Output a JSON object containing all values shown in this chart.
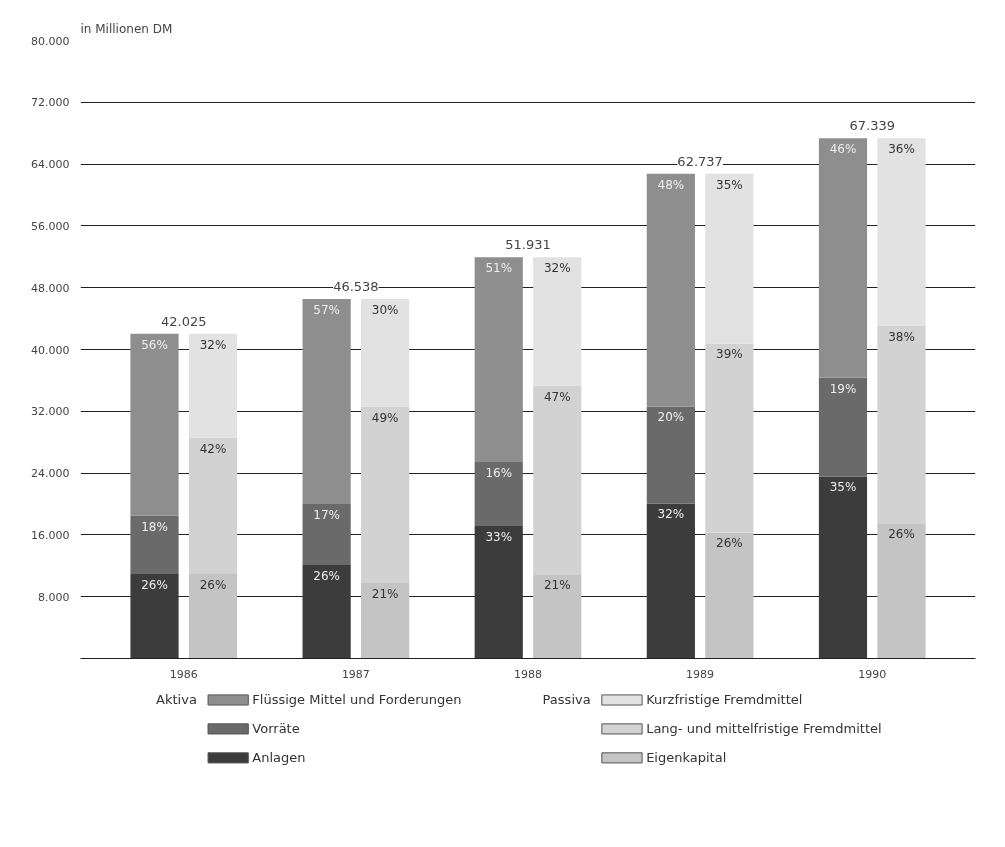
{
  "chart_data": [
    {
      "type": "bar",
      "stacked": true,
      "ylabel": "in Millionen DM",
      "legend_title": "Aktiva",
      "categories": [
        "1986",
        "1987",
        "1988",
        "1989",
        "1990"
      ],
      "ylim": [
        0,
        80000
      ],
      "yticks": [
        {
          "value": 8000,
          "label": "8.000"
        },
        {
          "value": 16000,
          "label": "16.000"
        },
        {
          "value": 24000,
          "label": "24.000"
        },
        {
          "value": 32000,
          "label": "32.000"
        },
        {
          "value": 40000,
          "label": "40.000"
        },
        {
          "value": 48000,
          "label": "48.000"
        },
        {
          "value": 56000,
          "label": "56.000"
        },
        {
          "value": 64000,
          "label": "64.000"
        },
        {
          "value": 72000,
          "label": "72.000"
        },
        {
          "value": 80000,
          "label": "80.000"
        }
      ],
      "grid": "y",
      "legend": "bottom",
      "totals": [
        "42.025",
        "46.538",
        "51.931",
        "62.737",
        "67.339"
      ],
      "series": [
        {
          "name": "Anlagen",
          "color": "#3c3c3c",
          "values": [
            10927,
            12100,
            17137,
            20076,
            23569
          ]
        },
        {
          "name": "Vorräte",
          "color": "#6a6a6a",
          "values": [
            7565,
            7911,
            8309,
            12547,
            12794
          ]
        },
        {
          "name": "Flüssige Mittel und Forderungen",
          "color": "#8e8e8e",
          "values": [
            23533,
            26527,
            26485,
            30114,
            30976
          ]
        }
      ],
      "annotations": [
        "26%",
        "26%",
        "33%",
        "32%",
        "35%",
        "18%",
        "17%",
        "16%",
        "20%",
        "19%",
        "56%",
        "57%",
        "51%",
        "48%",
        "46%"
      ]
    },
    {
      "type": "bar",
      "stacked": true,
      "legend_title": "Passiva",
      "tick_labels": false,
      "categories": [
        "1986",
        "1987",
        "1988",
        "1989",
        "1990"
      ],
      "ylim": [
        0,
        80000
      ],
      "grid": "y",
      "legend": "bottom",
      "series": [
        {
          "name": "Eigenkapital",
          "color": "#c4c4c4",
          "values": [
            10927,
            9773,
            10906,
            16312,
            17508
          ]
        },
        {
          "name": "Lang- und mittelfristige Fremdmittel",
          "color": "#d2d2d2",
          "values": [
            17651,
            22804,
            24408,
            24467,
            25589
          ]
        },
        {
          "name": "Kurzfristige Fremdmittel",
          "color": "#e2e2e2",
          "values": [
            13447,
            13961,
            16617,
            21958,
            24242
          ]
        }
      ],
      "annotations": [
        "26%",
        "21%",
        "21%",
        "26%",
        "26%",
        "42%",
        "49%",
        "47%",
        "39%",
        "38%",
        "32%",
        "30%",
        "32%",
        "35%",
        "36%"
      ]
    }
  ]
}
